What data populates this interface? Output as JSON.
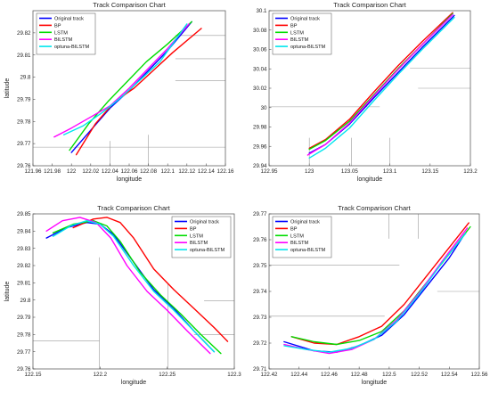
{
  "figure": {
    "background": "#ffffff"
  },
  "legend_entries": [
    {
      "name": "Original track",
      "color": "#0000ff"
    },
    {
      "name": "BP",
      "color": "#ff0000"
    },
    {
      "name": "LSTM",
      "color": "#00dd00"
    },
    {
      "name": "BILSTM",
      "color": "#ff00ff"
    },
    {
      "name": "optuna-BILSTM",
      "color": "#00e5ee"
    }
  ],
  "chart_data": [
    {
      "type": "line",
      "title": "Track Comparison Chart",
      "xlabel": "longitude",
      "ylabel": "latitude",
      "xlim": [
        121.96,
        122.16
      ],
      "ylim": [
        29.76,
        29.83
      ],
      "xticks": [
        121.96,
        121.98,
        122,
        122.02,
        122.04,
        122.06,
        122.08,
        122.1,
        122.12,
        122.14,
        122.16
      ],
      "yticks": [
        29.76,
        29.77,
        29.78,
        29.79,
        29.8,
        29.81,
        29.82
      ],
      "xtick_labels": [
        "121.96",
        "121.98",
        "122",
        "122.02",
        "122.04",
        "122.06",
        "122.08",
        "122.1",
        "122.12",
        "122.14",
        "122.16"
      ],
      "ytick_labels": [
        "29.76",
        "29.77",
        "29.78",
        "29.79",
        "29.8",
        "29.81",
        "29.82"
      ],
      "grid": "partial",
      "legend_position": "top-left",
      "series": [
        {
          "name": "Original track",
          "color": "#0000ff",
          "x": [
            122.0,
            122.02,
            122.04,
            122.06,
            122.08,
            122.1,
            122.125
          ],
          "y": [
            29.766,
            29.776,
            29.786,
            29.794,
            29.803,
            29.812,
            29.825
          ]
        },
        {
          "name": "BP",
          "color": "#ff0000",
          "x": [
            122.005,
            122.025,
            122.045,
            122.065,
            122.085,
            122.105,
            122.135
          ],
          "y": [
            29.765,
            29.779,
            29.789,
            29.795,
            29.803,
            29.811,
            29.822
          ]
        },
        {
          "name": "LSTM",
          "color": "#00dd00",
          "x": [
            121.998,
            122.018,
            122.038,
            122.058,
            122.078,
            122.1,
            122.125
          ],
          "y": [
            29.767,
            29.779,
            29.789,
            29.798,
            29.807,
            29.815,
            29.825
          ]
        },
        {
          "name": "BILSTM",
          "color": "#ff00ff",
          "x": [
            121.982,
            122.0,
            122.02,
            122.04,
            122.06,
            122.08,
            122.1,
            122.122
          ],
          "y": [
            29.773,
            29.777,
            29.782,
            29.787,
            29.795,
            29.804,
            29.813,
            29.824
          ]
        },
        {
          "name": "optuna-BILSTM",
          "color": "#00e5ee",
          "x": [
            121.992,
            122.012,
            122.032,
            122.052,
            122.072,
            122.092,
            122.12
          ],
          "y": [
            29.774,
            29.778,
            29.784,
            29.791,
            29.799,
            29.807,
            29.824
          ]
        }
      ]
    },
    {
      "type": "line",
      "title": "Track Comparison Chart",
      "xlabel": "longitude",
      "ylabel": "",
      "xlim": [
        122.95,
        123.2
      ],
      "ylim": [
        29.94,
        30.1
      ],
      "xticks": [
        122.95,
        123,
        123.05,
        123.1,
        123.15,
        123.2
      ],
      "yticks": [
        29.94,
        29.96,
        29.98,
        30,
        30.02,
        30.04,
        30.06,
        30.08,
        30.1
      ],
      "xtick_labels": [
        "122.95",
        "123",
        "123.05",
        "123.1",
        "123.15",
        "123.2"
      ],
      "ytick_labels": [
        "29.94",
        "29.96",
        "29.98",
        "30",
        "30.02",
        "30.04",
        "30.06",
        "30.08",
        "30.1"
      ],
      "grid": "partial",
      "legend_position": "top-left",
      "series": [
        {
          "name": "Original track",
          "color": "#0000ff",
          "x": [
            123.0,
            123.02,
            123.05,
            123.08,
            123.11,
            123.14,
            123.18
          ],
          "y": [
            29.953,
            29.962,
            29.983,
            30.01,
            30.036,
            30.062,
            30.095
          ]
        },
        {
          "name": "BP",
          "color": "#ff0000",
          "x": [
            123.0,
            123.02,
            123.05,
            123.08,
            123.11,
            123.14,
            123.178
          ],
          "y": [
            29.958,
            29.967,
            29.988,
            30.016,
            30.043,
            30.068,
            30.098
          ]
        },
        {
          "name": "LSTM",
          "color": "#00dd00",
          "x": [
            123.0,
            123.02,
            123.05,
            123.08,
            123.11,
            123.14,
            123.178
          ],
          "y": [
            29.957,
            29.966,
            29.986,
            30.013,
            30.04,
            30.065,
            30.097
          ]
        },
        {
          "name": "BILSTM",
          "color": "#ff00ff",
          "x": [
            122.998,
            123.02,
            123.05,
            123.08,
            123.11,
            123.14,
            123.178
          ],
          "y": [
            29.951,
            29.962,
            29.984,
            30.012,
            30.039,
            30.065,
            30.096
          ]
        },
        {
          "name": "optuna-BILSTM",
          "color": "#00e5ee",
          "x": [
            123.0,
            123.02,
            123.05,
            123.08,
            123.11,
            123.14,
            123.18
          ],
          "y": [
            29.948,
            29.958,
            29.979,
            30.007,
            30.034,
            30.06,
            30.093
          ]
        }
      ]
    },
    {
      "type": "line",
      "title": "Track Comparison Chart",
      "xlabel": "longitude",
      "ylabel": "latitude",
      "xlim": [
        122.15,
        122.3
      ],
      "ylim": [
        29.76,
        29.85
      ],
      "xticks": [
        122.15,
        122.2,
        122.25,
        122.3
      ],
      "yticks": [
        29.76,
        29.77,
        29.78,
        29.79,
        29.8,
        29.81,
        29.82,
        29.83,
        29.84,
        29.85
      ],
      "xtick_labels": [
        "122.15",
        "122.2",
        "122.25",
        "122.3"
      ],
      "ytick_labels": [
        "29.76",
        "29.77",
        "29.78",
        "29.79",
        "29.8",
        "29.81",
        "29.82",
        "29.83",
        "29.84",
        "29.85"
      ],
      "grid": "partial",
      "legend_position": "top-right",
      "series": [
        {
          "name": "Original track",
          "color": "#0000ff",
          "x": [
            122.16,
            122.175,
            122.19,
            122.2,
            122.21,
            122.225,
            122.24,
            122.255,
            122.27,
            122.285
          ],
          "y": [
            29.836,
            29.842,
            29.845,
            29.844,
            29.838,
            29.822,
            29.806,
            29.795,
            29.782,
            29.77
          ]
        },
        {
          "name": "BP",
          "color": "#ff0000",
          "x": [
            122.18,
            122.195,
            122.205,
            122.215,
            122.225,
            122.24,
            122.255,
            122.27,
            122.285,
            122.295
          ],
          "y": [
            29.842,
            29.847,
            29.848,
            29.845,
            29.836,
            29.818,
            29.806,
            29.795,
            29.784,
            29.776
          ]
        },
        {
          "name": "LSTM",
          "color": "#00dd00",
          "x": [
            122.165,
            122.18,
            122.195,
            122.205,
            122.215,
            122.23,
            122.245,
            122.26,
            122.275,
            122.29
          ],
          "y": [
            29.839,
            29.844,
            29.846,
            29.843,
            29.834,
            29.816,
            29.803,
            29.792,
            29.78,
            29.769
          ]
        },
        {
          "name": "BILSTM",
          "color": "#ff00ff",
          "x": [
            122.16,
            122.172,
            122.185,
            122.197,
            122.208,
            122.22,
            122.235,
            122.25,
            122.265,
            122.282
          ],
          "y": [
            29.84,
            29.846,
            29.848,
            29.845,
            29.836,
            29.82,
            29.805,
            29.794,
            29.782,
            29.769
          ]
        },
        {
          "name": "optuna-BILSTM",
          "color": "#00e5ee",
          "x": [
            122.165,
            122.178,
            122.19,
            122.2,
            122.21,
            122.225,
            122.24,
            122.255,
            122.27,
            122.285
          ],
          "y": [
            29.837,
            29.843,
            29.846,
            29.844,
            29.837,
            29.82,
            29.805,
            29.794,
            29.782,
            29.77
          ]
        }
      ]
    },
    {
      "type": "line",
      "title": "Track Comparison Chart",
      "xlabel": "longitude",
      "ylabel": "",
      "xlim": [
        122.42,
        122.56
      ],
      "ylim": [
        29.71,
        29.77
      ],
      "xticks": [
        122.42,
        122.44,
        122.46,
        122.48,
        122.5,
        122.52,
        122.54,
        122.56
      ],
      "yticks": [
        29.71,
        29.72,
        29.73,
        29.74,
        29.75,
        29.76,
        29.77
      ],
      "xtick_labels": [
        "122.42",
        "122.44",
        "122.46",
        "122.48",
        "122.5",
        "122.52",
        "122.54",
        "122.56"
      ],
      "ytick_labels": [
        "29.71",
        "29.72",
        "29.73",
        "29.74",
        "29.75",
        "29.76",
        "29.77"
      ],
      "grid": "partial",
      "legend_position": "top-left",
      "series": [
        {
          "name": "Original track",
          "color": "#0000ff",
          "x": [
            122.43,
            122.45,
            122.465,
            122.48,
            122.495,
            122.51,
            122.525,
            122.54,
            122.55
          ],
          "y": [
            29.7205,
            29.717,
            29.7165,
            29.719,
            29.723,
            29.731,
            29.742,
            29.753,
            29.762
          ]
        },
        {
          "name": "BP",
          "color": "#ff0000",
          "x": [
            122.435,
            122.45,
            122.465,
            122.48,
            122.495,
            122.51,
            122.525,
            122.54,
            122.553
          ],
          "y": [
            29.7225,
            29.72,
            29.7195,
            29.7225,
            29.7265,
            29.735,
            29.746,
            29.757,
            29.7665
          ]
        },
        {
          "name": "LSTM",
          "color": "#00dd00",
          "x": [
            122.435,
            122.45,
            122.465,
            122.48,
            122.495,
            122.51,
            122.525,
            122.54,
            122.554
          ],
          "y": [
            29.7225,
            29.7205,
            29.7195,
            29.721,
            29.7245,
            29.7325,
            29.7435,
            29.7545,
            29.765
          ]
        },
        {
          "name": "BILSTM",
          "color": "#ff00ff",
          "x": [
            122.43,
            122.445,
            122.46,
            122.475,
            122.49,
            122.505,
            122.52,
            122.535,
            122.552
          ],
          "y": [
            29.7195,
            29.7175,
            29.716,
            29.7175,
            29.7215,
            29.729,
            29.7395,
            29.7515,
            29.7645
          ]
        },
        {
          "name": "optuna-BILSTM",
          "color": "#00e5ee",
          "x": [
            122.43,
            122.445,
            122.46,
            122.475,
            122.49,
            122.505,
            122.52,
            122.535,
            122.551
          ],
          "y": [
            29.719,
            29.7175,
            29.7165,
            29.718,
            29.7215,
            29.7285,
            29.739,
            29.751,
            29.7625
          ]
        }
      ]
    }
  ]
}
